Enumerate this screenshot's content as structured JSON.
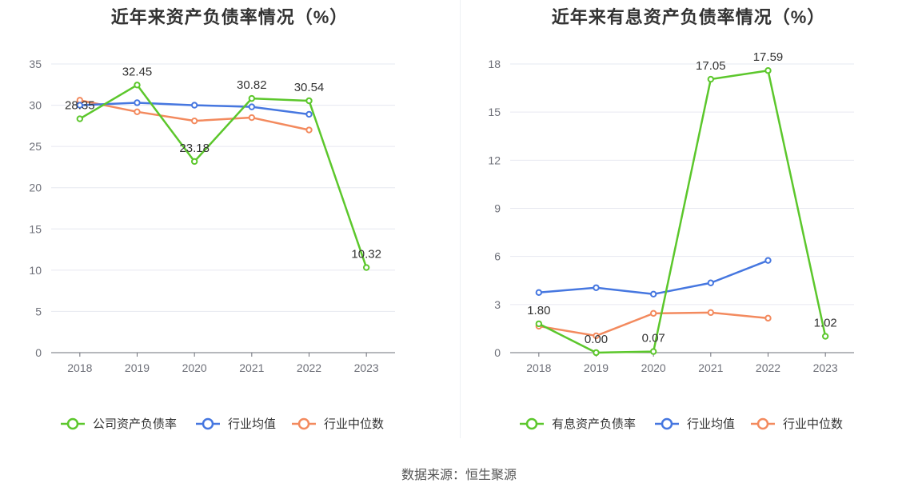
{
  "colors": {
    "company": "#5cc72c",
    "industry_avg": "#4677e0",
    "industry_median": "#f38a5e",
    "grid": "#e6e8f0",
    "axis": "#6e7079"
  },
  "source": "数据来源：恒生聚源",
  "chart_data": [
    {
      "type": "line",
      "title": "近年来资产负债率情况（%）",
      "categories": [
        "2018",
        "2019",
        "2020",
        "2021",
        "2022",
        "2023"
      ],
      "ylim": [
        0,
        35
      ],
      "yticks": [
        0,
        5,
        10,
        15,
        20,
        25,
        30,
        35
      ],
      "series": [
        {
          "name": "公司资产负债率",
          "values": [
            28.35,
            32.45,
            23.18,
            30.82,
            30.54,
            10.32
          ],
          "labels": [
            "28.35",
            "32.45",
            "23.18",
            "30.82",
            "30.54",
            "10.32"
          ]
        },
        {
          "name": "行业均值",
          "values": [
            30.0,
            30.3,
            30.0,
            29.8,
            28.9,
            null
          ]
        },
        {
          "name": "行业中位数",
          "values": [
            30.6,
            29.2,
            28.1,
            28.5,
            27.0,
            null
          ]
        }
      ],
      "legend_position": "bottom",
      "grid": true
    },
    {
      "type": "line",
      "title": "近年来有息资产负债率情况（%）",
      "categories": [
        "2018",
        "2019",
        "2020",
        "2021",
        "2022",
        "2023"
      ],
      "ylim": [
        0,
        18
      ],
      "yticks": [
        0,
        3,
        6,
        9,
        12,
        15,
        18
      ],
      "series": [
        {
          "name": "有息资产负债率",
          "values": [
            1.8,
            0.0,
            0.07,
            17.05,
            17.59,
            1.02
          ],
          "labels": [
            "1.80",
            "0.00",
            "0.07",
            "17.05",
            "17.59",
            "1.02"
          ]
        },
        {
          "name": "行业均值",
          "values": [
            3.75,
            4.05,
            3.65,
            4.35,
            5.75,
            null
          ]
        },
        {
          "name": "行业中位数",
          "values": [
            1.65,
            1.05,
            2.45,
            2.5,
            2.15,
            null
          ]
        }
      ],
      "legend_position": "bottom",
      "grid": true
    }
  ]
}
